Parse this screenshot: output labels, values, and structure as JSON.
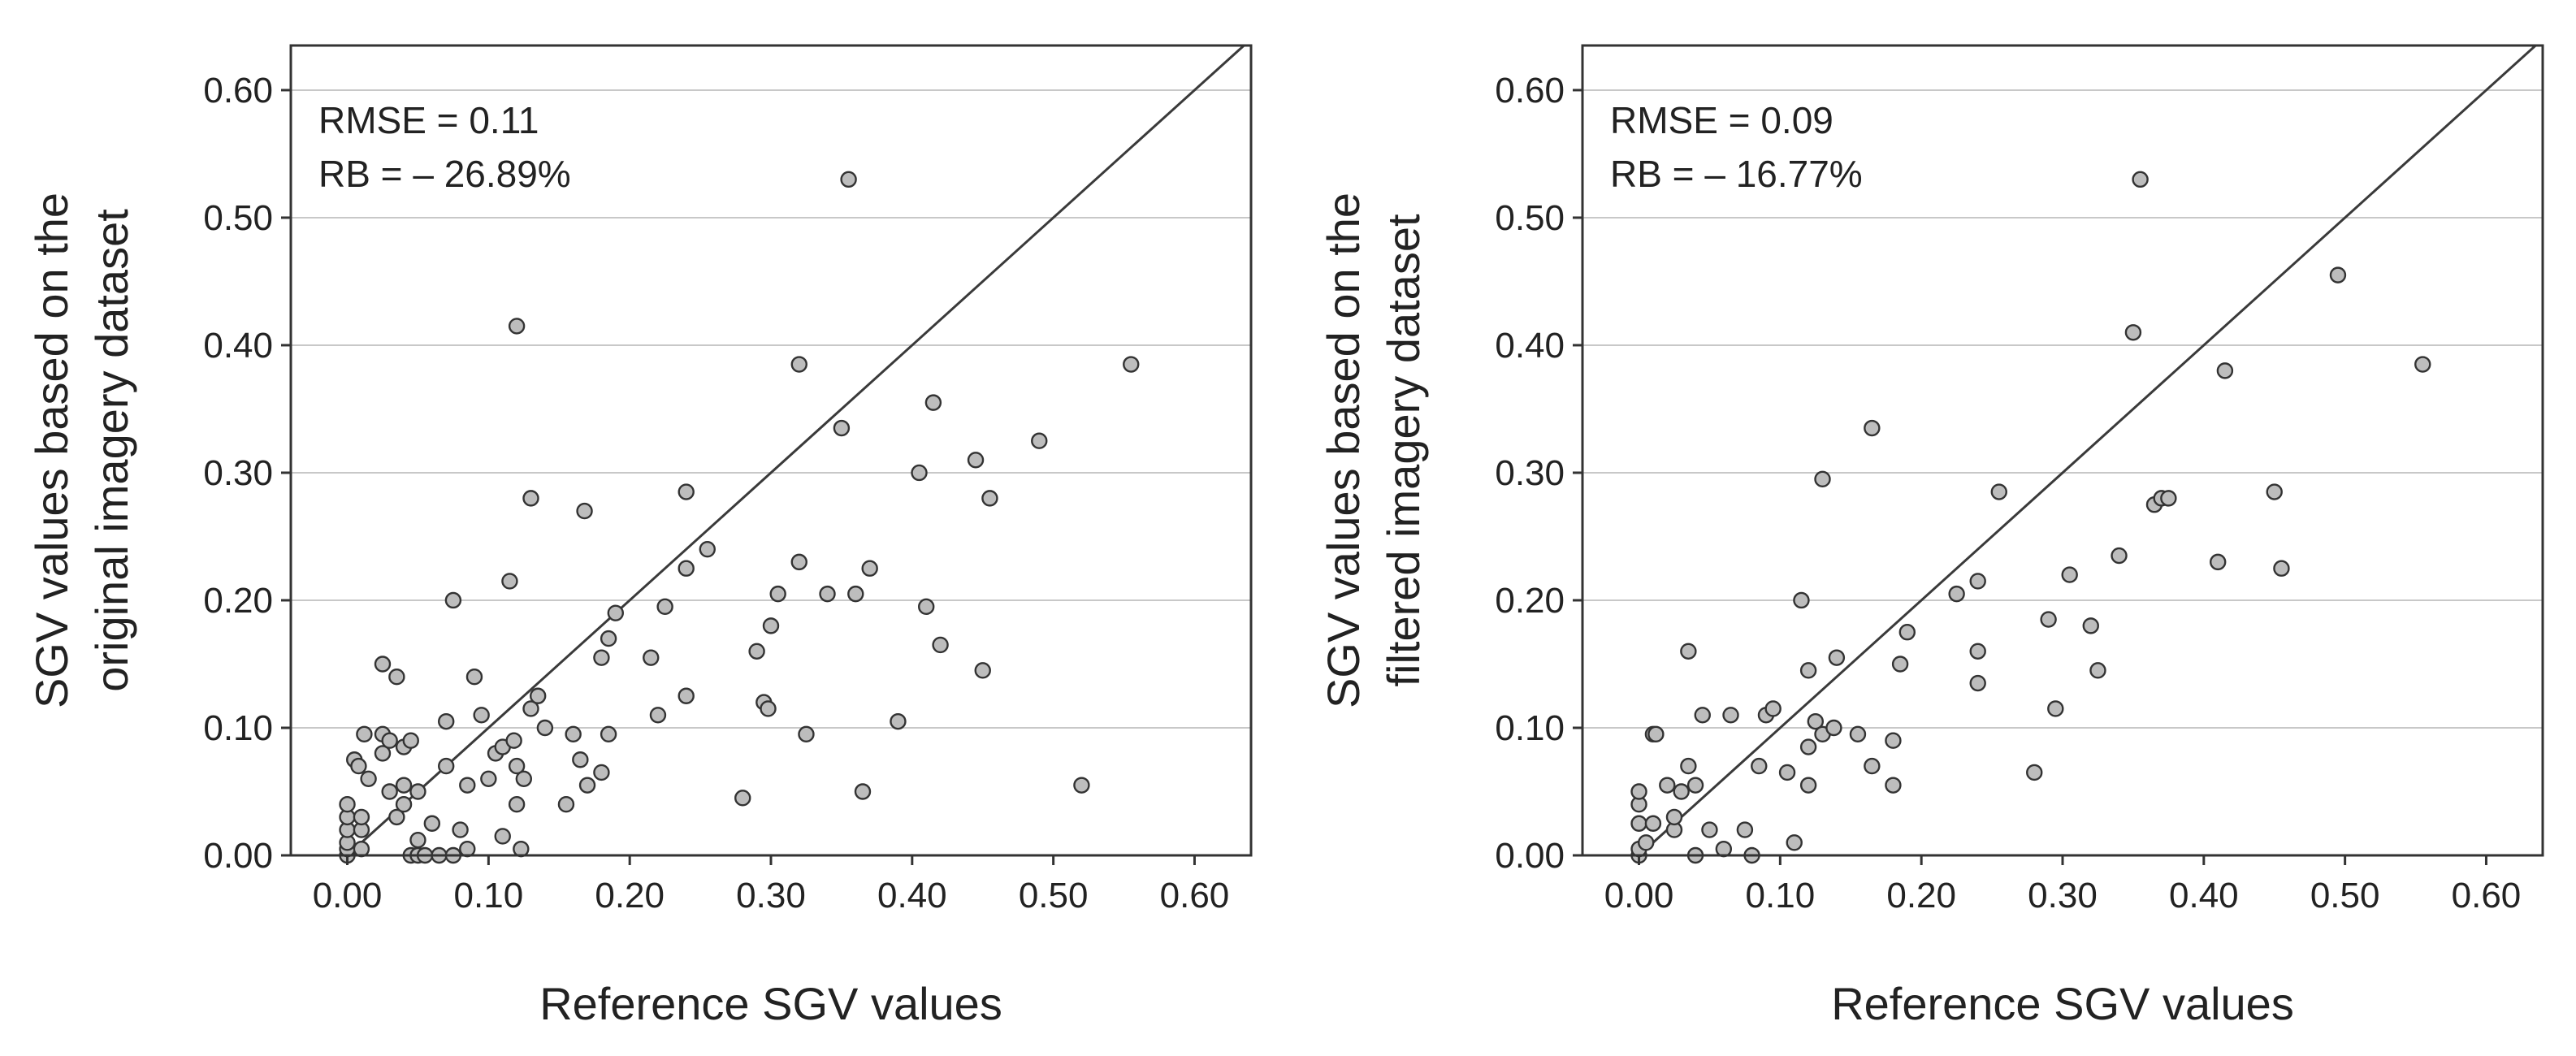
{
  "chart_data": [
    {
      "type": "scatter",
      "xlabel": "Reference SGV values",
      "ylabel_lines": [
        "SGV values based on the",
        "original imagery dataset"
      ],
      "xlim": [
        -0.04,
        0.64
      ],
      "ylim": [
        0.0,
        0.635
      ],
      "xticks": [
        "0.00",
        "0.10",
        "0.20",
        "0.30",
        "0.40",
        "0.50",
        "0.60"
      ],
      "yticks": [
        "0.00",
        "0.10",
        "0.20",
        "0.30",
        "0.40",
        "0.50",
        "0.60"
      ],
      "grid": "horizontal",
      "reference_line": "1:1",
      "annotations": [
        "RMSE = 0.11",
        "RB = – 26.89%"
      ],
      "points": [
        [
          0.0,
          0.0
        ],
        [
          0.0,
          0.005
        ],
        [
          0.0,
          0.01
        ],
        [
          0.0,
          0.02
        ],
        [
          0.0,
          0.03
        ],
        [
          0.0,
          0.04
        ],
        [
          0.005,
          0.075
        ],
        [
          0.008,
          0.07
        ],
        [
          0.01,
          0.005
        ],
        [
          0.01,
          0.02
        ],
        [
          0.01,
          0.03
        ],
        [
          0.012,
          0.095
        ],
        [
          0.015,
          0.06
        ],
        [
          0.025,
          0.095
        ],
        [
          0.025,
          0.15
        ],
        [
          0.025,
          0.08
        ],
        [
          0.03,
          0.09
        ],
        [
          0.03,
          0.05
        ],
        [
          0.035,
          0.14
        ],
        [
          0.035,
          0.03
        ],
        [
          0.04,
          0.085
        ],
        [
          0.04,
          0.04
        ],
        [
          0.04,
          0.055
        ],
        [
          0.045,
          0.09
        ],
        [
          0.045,
          0.0
        ],
        [
          0.05,
          0.0
        ],
        [
          0.05,
          0.012
        ],
        [
          0.05,
          0.05
        ],
        [
          0.055,
          0.0
        ],
        [
          0.06,
          0.025
        ],
        [
          0.065,
          0.0
        ],
        [
          0.07,
          0.07
        ],
        [
          0.07,
          0.105
        ],
        [
          0.075,
          0.2
        ],
        [
          0.075,
          0.0
        ],
        [
          0.08,
          0.02
        ],
        [
          0.085,
          0.005
        ],
        [
          0.085,
          0.055
        ],
        [
          0.09,
          0.14
        ],
        [
          0.095,
          0.11
        ],
        [
          0.1,
          0.06
        ],
        [
          0.105,
          0.08
        ],
        [
          0.11,
          0.015
        ],
        [
          0.11,
          0.085
        ],
        [
          0.115,
          0.215
        ],
        [
          0.118,
          0.09
        ],
        [
          0.12,
          0.415
        ],
        [
          0.12,
          0.07
        ],
        [
          0.12,
          0.04
        ],
        [
          0.123,
          0.005
        ],
        [
          0.125,
          0.06
        ],
        [
          0.13,
          0.28
        ],
        [
          0.13,
          0.115
        ],
        [
          0.135,
          0.125
        ],
        [
          0.14,
          0.1
        ],
        [
          0.155,
          0.04
        ],
        [
          0.16,
          0.095
        ],
        [
          0.165,
          0.075
        ],
        [
          0.168,
          0.27
        ],
        [
          0.17,
          0.055
        ],
        [
          0.18,
          0.155
        ],
        [
          0.18,
          0.065
        ],
        [
          0.185,
          0.17
        ],
        [
          0.185,
          0.095
        ],
        [
          0.19,
          0.19
        ],
        [
          0.215,
          0.155
        ],
        [
          0.22,
          0.11
        ],
        [
          0.225,
          0.195
        ],
        [
          0.24,
          0.285
        ],
        [
          0.24,
          0.225
        ],
        [
          0.24,
          0.125
        ],
        [
          0.255,
          0.24
        ],
        [
          0.28,
          0.045
        ],
        [
          0.29,
          0.16
        ],
        [
          0.295,
          0.12
        ],
        [
          0.298,
          0.115
        ],
        [
          0.3,
          0.18
        ],
        [
          0.305,
          0.205
        ],
        [
          0.32,
          0.23
        ],
        [
          0.32,
          0.385
        ],
        [
          0.325,
          0.095
        ],
        [
          0.34,
          0.205
        ],
        [
          0.35,
          0.335
        ],
        [
          0.355,
          0.53
        ],
        [
          0.36,
          0.205
        ],
        [
          0.365,
          0.05
        ],
        [
          0.37,
          0.225
        ],
        [
          0.39,
          0.105
        ],
        [
          0.405,
          0.3
        ],
        [
          0.41,
          0.195
        ],
        [
          0.415,
          0.355
        ],
        [
          0.42,
          0.165
        ],
        [
          0.445,
          0.31
        ],
        [
          0.45,
          0.145
        ],
        [
          0.455,
          0.28
        ],
        [
          0.49,
          0.325
        ],
        [
          0.52,
          0.055
        ],
        [
          0.555,
          0.385
        ]
      ]
    },
    {
      "type": "scatter",
      "xlabel": "Reference SGV values",
      "ylabel_lines": [
        "SGV values based on the",
        "filtered imagery dataset"
      ],
      "xlim": [
        -0.04,
        0.64
      ],
      "ylim": [
        0.0,
        0.635
      ],
      "xticks": [
        "0.00",
        "0.10",
        "0.20",
        "0.30",
        "0.40",
        "0.50",
        "0.60"
      ],
      "yticks": [
        "0.00",
        "0.10",
        "0.20",
        "0.30",
        "0.40",
        "0.50",
        "0.60"
      ],
      "grid": "horizontal",
      "reference_line": "1:1",
      "annotations": [
        "RMSE = 0.09",
        "RB = – 16.77%"
      ],
      "points": [
        [
          0.0,
          0.0
        ],
        [
          0.0,
          0.005
        ],
        [
          0.0,
          0.025
        ],
        [
          0.0,
          0.04
        ],
        [
          0.0,
          0.05
        ],
        [
          0.005,
          0.01
        ],
        [
          0.01,
          0.095
        ],
        [
          0.01,
          0.025
        ],
        [
          0.012,
          0.095
        ],
        [
          0.02,
          0.055
        ],
        [
          0.025,
          0.02
        ],
        [
          0.025,
          0.03
        ],
        [
          0.03,
          0.05
        ],
        [
          0.035,
          0.16
        ],
        [
          0.035,
          0.07
        ],
        [
          0.04,
          0.055
        ],
        [
          0.04,
          0.0
        ],
        [
          0.045,
          0.11
        ],
        [
          0.05,
          0.02
        ],
        [
          0.06,
          0.005
        ],
        [
          0.065,
          0.11
        ],
        [
          0.075,
          0.02
        ],
        [
          0.08,
          0.0
        ],
        [
          0.085,
          0.07
        ],
        [
          0.09,
          0.11
        ],
        [
          0.095,
          0.115
        ],
        [
          0.105,
          0.065
        ],
        [
          0.11,
          0.01
        ],
        [
          0.115,
          0.2
        ],
        [
          0.12,
          0.145
        ],
        [
          0.12,
          0.085
        ],
        [
          0.12,
          0.055
        ],
        [
          0.125,
          0.105
        ],
        [
          0.13,
          0.095
        ],
        [
          0.13,
          0.295
        ],
        [
          0.138,
          0.1
        ],
        [
          0.14,
          0.155
        ],
        [
          0.155,
          0.095
        ],
        [
          0.165,
          0.335
        ],
        [
          0.165,
          0.07
        ],
        [
          0.18,
          0.09
        ],
        [
          0.18,
          0.055
        ],
        [
          0.185,
          0.15
        ],
        [
          0.19,
          0.175
        ],
        [
          0.225,
          0.205
        ],
        [
          0.24,
          0.215
        ],
        [
          0.24,
          0.16
        ],
        [
          0.24,
          0.135
        ],
        [
          0.255,
          0.285
        ],
        [
          0.28,
          0.065
        ],
        [
          0.29,
          0.185
        ],
        [
          0.295,
          0.115
        ],
        [
          0.305,
          0.22
        ],
        [
          0.32,
          0.18
        ],
        [
          0.325,
          0.145
        ],
        [
          0.34,
          0.235
        ],
        [
          0.35,
          0.41
        ],
        [
          0.355,
          0.53
        ],
        [
          0.365,
          0.275
        ],
        [
          0.37,
          0.28
        ],
        [
          0.375,
          0.28
        ],
        [
          0.41,
          0.23
        ],
        [
          0.415,
          0.38
        ],
        [
          0.45,
          0.285
        ],
        [
          0.455,
          0.225
        ],
        [
          0.495,
          0.455
        ],
        [
          0.555,
          0.385
        ]
      ]
    }
  ]
}
